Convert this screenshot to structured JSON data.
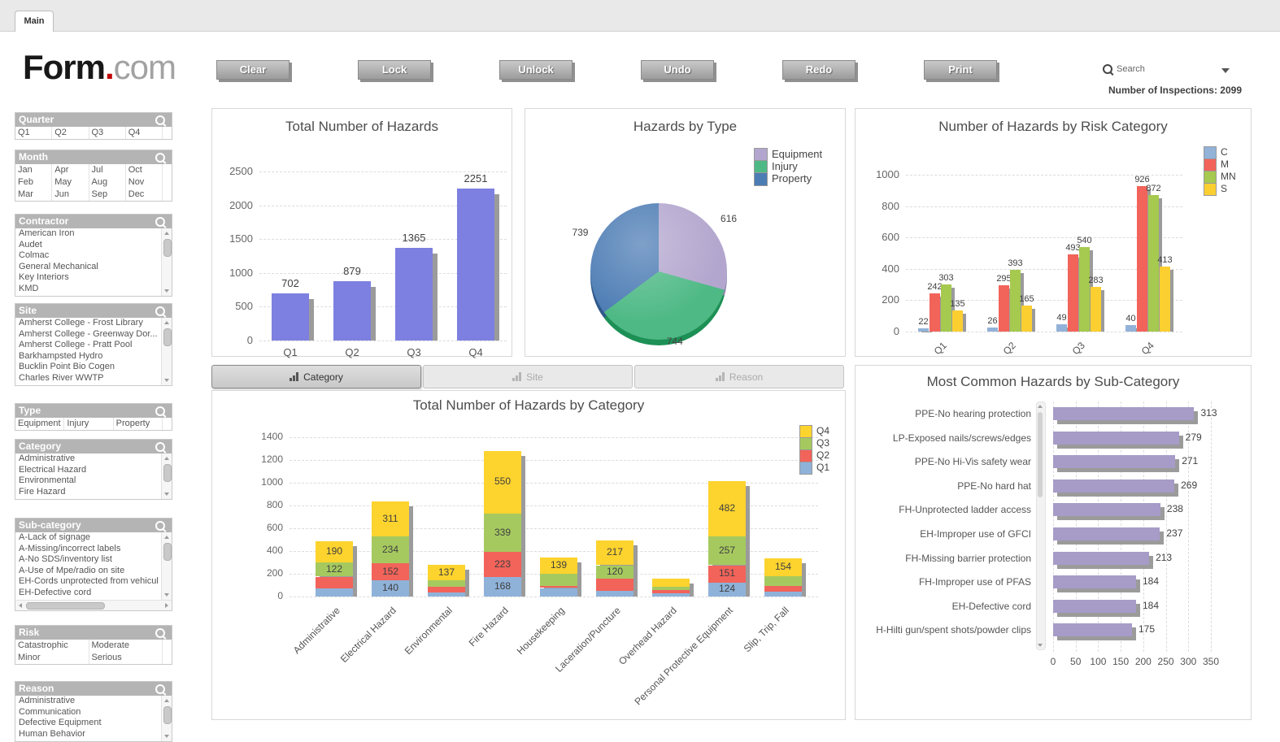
{
  "tab": {
    "label": "Main"
  },
  "logo": {
    "form": "Form",
    "dot": ".",
    "com": "com"
  },
  "toolbar": {
    "buttons": [
      "Clear",
      "Lock",
      "Unlock",
      "Undo",
      "Redo",
      "Print"
    ],
    "search_label": "Search",
    "inspections": "Number of Inspections: 2099"
  },
  "filters": [
    {
      "id": "quarter",
      "title": "Quarter",
      "layout": "grid",
      "cols": 4,
      "items": [
        "Q1",
        "Q2",
        "Q3",
        "Q4"
      ],
      "gap_after": 12
    },
    {
      "id": "month",
      "title": "Month",
      "layout": "grid",
      "cols": 4,
      "items": [
        "Jan",
        "Apr",
        "Jul",
        "Oct",
        "Feb",
        "May",
        "Aug",
        "Nov",
        "Mar",
        "Jun",
        "Sep",
        "Dec"
      ],
      "gap_after": 15
    },
    {
      "id": "contractor",
      "title": "Contractor",
      "layout": "list",
      "items": [
        "American Iron",
        "Audet",
        "Colmac",
        "General Mechanical",
        "Key Interiors",
        "KMD"
      ],
      "vscroll": true,
      "gap_after": 8
    },
    {
      "id": "site",
      "title": "Site",
      "layout": "list",
      "items": [
        "Amherst College - Frost Library",
        "Amherst College - Greenway Dor...",
        "Amherst College - Pratt Pool",
        "Barkhampsted Hydro",
        "Bucklin Point Bio Cogen",
        "Charles River WWTP"
      ],
      "vscroll": true,
      "gap_after": 21
    },
    {
      "id": "type",
      "title": "Type",
      "layout": "grid",
      "cols": 3,
      "items": [
        "Equipment",
        "Injury",
        "Property"
      ],
      "gap_after": 10
    },
    {
      "id": "category",
      "title": "Category",
      "layout": "list",
      "items": [
        "Administrative",
        "Electrical Hazard",
        "Environmental",
        "Fire Hazard"
      ],
      "vscroll": true,
      "gap_after": 22
    },
    {
      "id": "sub-category",
      "title": "Sub-category",
      "layout": "list",
      "items": [
        "A-Lack of signage",
        "A-Missing/incorrect labels",
        "A-No SDS/inventory list",
        "A-Use of Mpe/radio on site",
        "EH-Cords unprotected from vehicul",
        "EH-Defective cord"
      ],
      "vscroll": true,
      "hscroll": true,
      "gap_after": 17
    },
    {
      "id": "risk",
      "title": "Risk",
      "layout": "grid",
      "cols": 2,
      "items": [
        "Catastrophic",
        "Moderate",
        "Minor",
        "Serious"
      ],
      "gap_after": 20
    },
    {
      "id": "reason",
      "title": "Reason",
      "layout": "list",
      "items": [
        "Administrative",
        "Communication",
        "Defective Equipment",
        "Human Behavior"
      ],
      "vscroll": true,
      "gap_after": 0
    }
  ],
  "chart_tabs": [
    {
      "label": "Category",
      "active": true
    },
    {
      "label": "Site",
      "active": false
    },
    {
      "label": "Reason",
      "active": false
    }
  ],
  "chart_data": [
    {
      "id": "total-hazards",
      "type": "bar",
      "title": "Total Number of Hazards",
      "categories": [
        "Q1",
        "Q2",
        "Q3",
        "Q4"
      ],
      "values": [
        702,
        879,
        1365,
        2251
      ],
      "ylim": [
        0,
        2500
      ],
      "ytick_step": 500,
      "grid": true,
      "bar_color": "#7d80e0"
    },
    {
      "id": "hazards-by-type",
      "type": "pie",
      "title": "Hazards by Type",
      "slices": [
        {
          "label": "Equipment",
          "value": 616,
          "color": "#b3a6ce",
          "rim": "#9183b3"
        },
        {
          "label": "Injury",
          "value": 744,
          "color": "#4eb985",
          "rim": "#1d9055"
        },
        {
          "label": "Property",
          "value": 739,
          "color": "#4c7cb4",
          "rim": "#30588a"
        }
      ],
      "total": 2099,
      "legend_position": "top-right",
      "start_angle": "12-o-clock",
      "direction": "clockwise"
    },
    {
      "id": "risk-category",
      "type": "grouped-bar",
      "title": "Number of Hazards by Risk Category",
      "categories": [
        "Q1",
        "Q2",
        "Q3",
        "Q4"
      ],
      "series": [
        {
          "name": "C",
          "color": "#92b2d8",
          "values": [
            22,
            26,
            49,
            40
          ]
        },
        {
          "name": "M",
          "color": "#f2635a",
          "values": [
            242,
            295,
            493,
            926
          ]
        },
        {
          "name": "MN",
          "color": "#a6c94f",
          "values": [
            303,
            393,
            540,
            872
          ]
        },
        {
          "name": "S",
          "color": "#fccf31",
          "values": [
            135,
            165,
            283,
            413
          ]
        }
      ],
      "ylim": [
        0,
        1000
      ],
      "ytick_step": 200,
      "legend_position": "top-right",
      "grid": true
    },
    {
      "id": "hazards-by-category",
      "type": "stacked-bar",
      "title": "Total Number of Hazards by Category",
      "categories": [
        "Administrative",
        "Electrical Hazard",
        "Environmental",
        "Fire Hazard",
        "Housekeeping",
        "Laceration/Puncture",
        "Overhead Hazard",
        "Personal Protective Equipment",
        "Slip, Trip, Fall"
      ],
      "series": [
        {
          "name": "Q1",
          "color": "#8fb2d9",
          "values": [
            75,
            140,
            35,
            168,
            75,
            50,
            30,
            124,
            40
          ],
          "labels": [
            null,
            "140",
            null,
            "168",
            null,
            null,
            null,
            "124",
            null
          ]
        },
        {
          "name": "Q2",
          "color": "#f2635a",
          "values": [
            100,
            152,
            50,
            223,
            20,
            105,
            25,
            151,
            55
          ],
          "labels": [
            null,
            "152",
            null,
            "223",
            null,
            null,
            null,
            "151",
            null
          ]
        },
        {
          "name": "Q3",
          "color": "#a6c95f",
          "values": [
            122,
            234,
            55,
            339,
            106,
            120,
            30,
            257,
            85
          ],
          "labels": [
            "122",
            "234",
            null,
            "339",
            null,
            "120",
            null,
            "257",
            null
          ]
        },
        {
          "name": "Q4",
          "color": "#fdd32e",
          "values": [
            190,
            311,
            137,
            550,
            139,
            217,
            70,
            482,
            154
          ],
          "labels": [
            "190",
            "311",
            "137",
            "550",
            "139",
            "217",
            null,
            "482",
            "154"
          ]
        }
      ],
      "ylim": [
        0,
        1400
      ],
      "ytick_step": 200,
      "legend_order": [
        "Q4",
        "Q3",
        "Q2",
        "Q1"
      ],
      "legend_position": "top-right",
      "grid": true,
      "note": "unlabeled segment values are estimates read from bar heights"
    },
    {
      "id": "sub-category-hazards",
      "type": "hbar",
      "title": "Most Common Hazards by Sub-Category",
      "categories": [
        "PPE-No hearing protection",
        "LP-Exposed nails/screws/edges",
        "PPE-No Hi-Vis safety wear",
        "PPE-No hard hat",
        "FH-Unprotected ladder access",
        "EH-Improper use of GFCI",
        "FH-Missing barrier protection",
        "FH-Improper use of PFAS",
        "EH-Defective cord",
        "H-Hilti gun/spent shots/powder clips"
      ],
      "values": [
        313,
        279,
        271,
        269,
        238,
        237,
        213,
        184,
        184,
        175
      ],
      "xlim": [
        0,
        350
      ],
      "xtick_step": 50,
      "bar_color": "#a79bc8",
      "grid": true
    }
  ]
}
